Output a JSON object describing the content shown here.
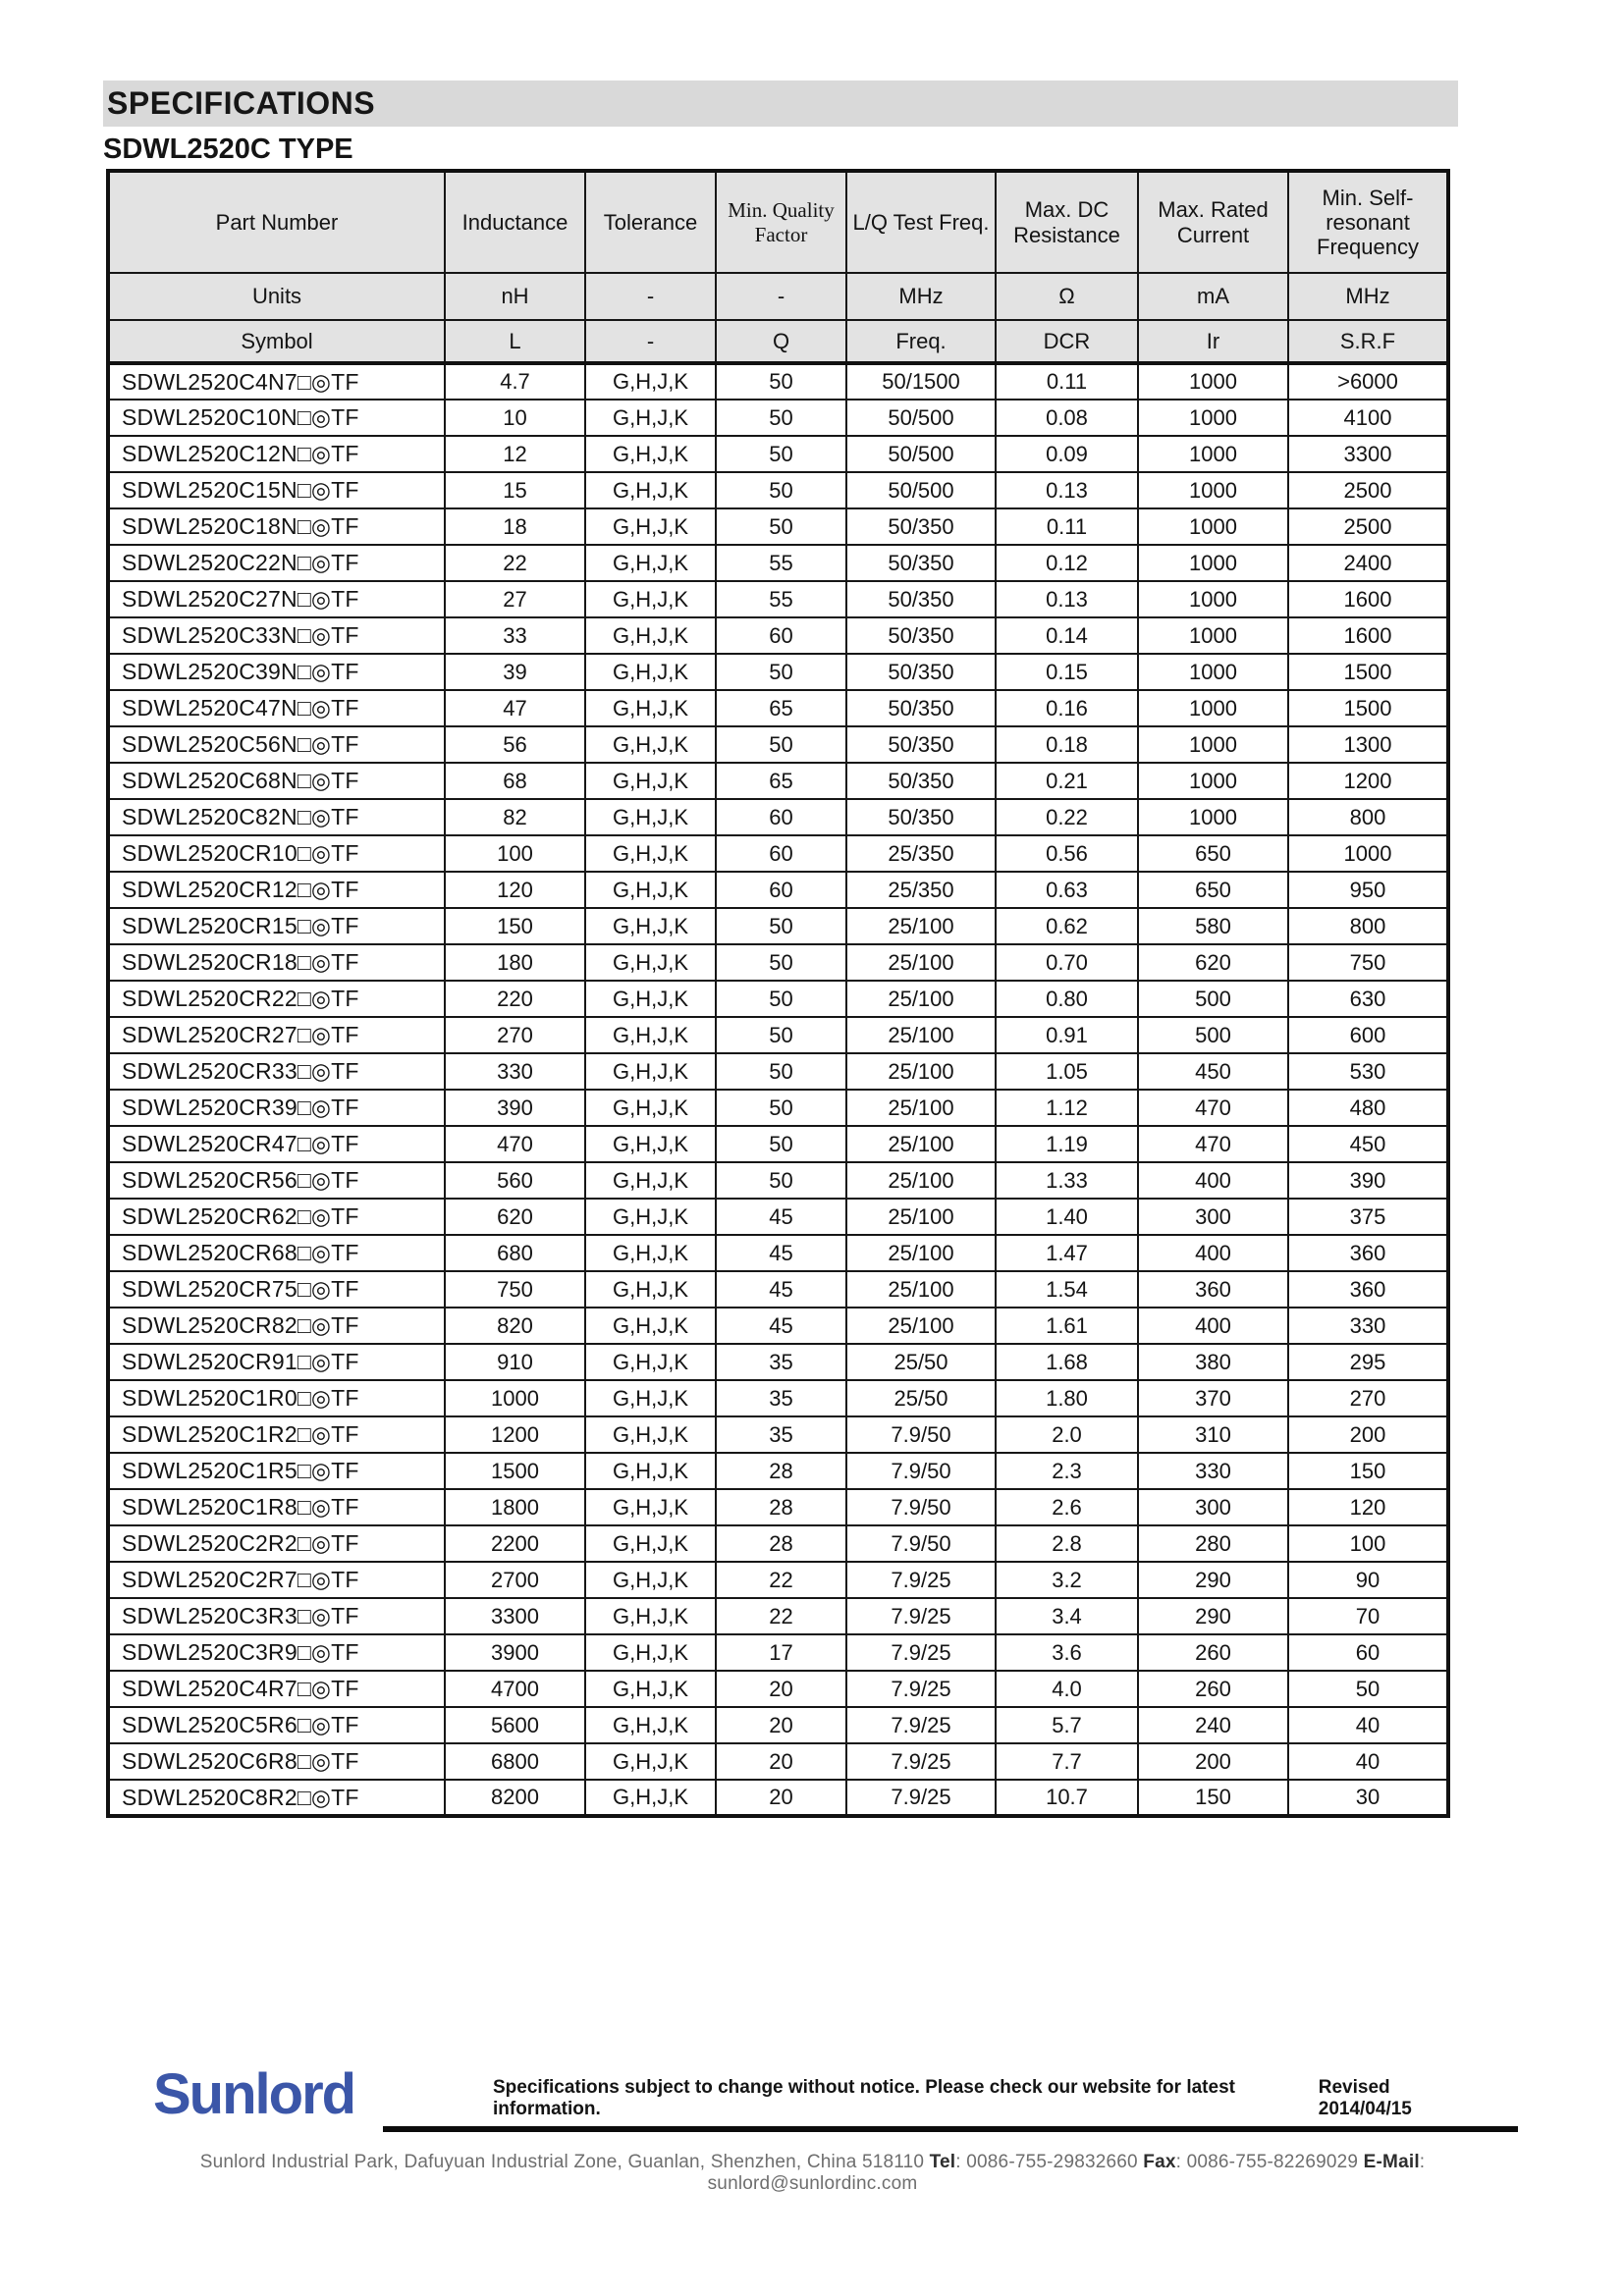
{
  "page": {
    "title": "SPECIFICATIONS",
    "subtitle": "SDWL2520C TYPE"
  },
  "table": {
    "columns": [
      "Part Number",
      "Inductance",
      "Tolerance",
      "Min. Quality Factor",
      "L/Q Test Freq.",
      "Max. DC Resistance",
      "Max. Rated Current",
      "Min. Self-resonant Frequency"
    ],
    "units_row": [
      "Units",
      "nH",
      "-",
      "-",
      "MHz",
      "Ω",
      "mA",
      "MHz"
    ],
    "symbol_row": [
      "Symbol",
      "L",
      "-",
      "Q",
      "Freq.",
      "DCR",
      "Ir",
      "S.R.F"
    ],
    "rows": [
      [
        "SDWL2520C4N7□◎TF",
        "4.7",
        "G,H,J,K",
        "50",
        "50/1500",
        "0.11",
        "1000",
        ">6000"
      ],
      [
        "SDWL2520C10N□◎TF",
        "10",
        "G,H,J,K",
        "50",
        "50/500",
        "0.08",
        "1000",
        "4100"
      ],
      [
        "SDWL2520C12N□◎TF",
        "12",
        "G,H,J,K",
        "50",
        "50/500",
        "0.09",
        "1000",
        "3300"
      ],
      [
        "SDWL2520C15N□◎TF",
        "15",
        "G,H,J,K",
        "50",
        "50/500",
        "0.13",
        "1000",
        "2500"
      ],
      [
        "SDWL2520C18N□◎TF",
        "18",
        "G,H,J,K",
        "50",
        "50/350",
        "0.11",
        "1000",
        "2500"
      ],
      [
        "SDWL2520C22N□◎TF",
        "22",
        "G,H,J,K",
        "55",
        "50/350",
        "0.12",
        "1000",
        "2400"
      ],
      [
        "SDWL2520C27N□◎TF",
        "27",
        "G,H,J,K",
        "55",
        "50/350",
        "0.13",
        "1000",
        "1600"
      ],
      [
        "SDWL2520C33N□◎TF",
        "33",
        "G,H,J,K",
        "60",
        "50/350",
        "0.14",
        "1000",
        "1600"
      ],
      [
        "SDWL2520C39N□◎TF",
        "39",
        "G,H,J,K",
        "50",
        "50/350",
        "0.15",
        "1000",
        "1500"
      ],
      [
        "SDWL2520C47N□◎TF",
        "47",
        "G,H,J,K",
        "65",
        "50/350",
        "0.16",
        "1000",
        "1500"
      ],
      [
        "SDWL2520C56N□◎TF",
        "56",
        "G,H,J,K",
        "50",
        "50/350",
        "0.18",
        "1000",
        "1300"
      ],
      [
        "SDWL2520C68N□◎TF",
        "68",
        "G,H,J,K",
        "65",
        "50/350",
        "0.21",
        "1000",
        "1200"
      ],
      [
        "SDWL2520C82N□◎TF",
        "82",
        "G,H,J,K",
        "60",
        "50/350",
        "0.22",
        "1000",
        "800"
      ],
      [
        "SDWL2520CR10□◎TF",
        "100",
        "G,H,J,K",
        "60",
        "25/350",
        "0.56",
        "650",
        "1000"
      ],
      [
        "SDWL2520CR12□◎TF",
        "120",
        "G,H,J,K",
        "60",
        "25/350",
        "0.63",
        "650",
        "950"
      ],
      [
        "SDWL2520CR15□◎TF",
        "150",
        "G,H,J,K",
        "50",
        "25/100",
        "0.62",
        "580",
        "800"
      ],
      [
        "SDWL2520CR18□◎TF",
        "180",
        "G,H,J,K",
        "50",
        "25/100",
        "0.70",
        "620",
        "750"
      ],
      [
        "SDWL2520CR22□◎TF",
        "220",
        "G,H,J,K",
        "50",
        "25/100",
        "0.80",
        "500",
        "630"
      ],
      [
        "SDWL2520CR27□◎TF",
        "270",
        "G,H,J,K",
        "50",
        "25/100",
        "0.91",
        "500",
        "600"
      ],
      [
        "SDWL2520CR33□◎TF",
        "330",
        "G,H,J,K",
        "50",
        "25/100",
        "1.05",
        "450",
        "530"
      ],
      [
        "SDWL2520CR39□◎TF",
        "390",
        "G,H,J,K",
        "50",
        "25/100",
        "1.12",
        "470",
        "480"
      ],
      [
        "SDWL2520CR47□◎TF",
        "470",
        "G,H,J,K",
        "50",
        "25/100",
        "1.19",
        "470",
        "450"
      ],
      [
        "SDWL2520CR56□◎TF",
        "560",
        "G,H,J,K",
        "50",
        "25/100",
        "1.33",
        "400",
        "390"
      ],
      [
        "SDWL2520CR62□◎TF",
        "620",
        "G,H,J,K",
        "45",
        "25/100",
        "1.40",
        "300",
        "375"
      ],
      [
        "SDWL2520CR68□◎TF",
        "680",
        "G,H,J,K",
        "45",
        "25/100",
        "1.47",
        "400",
        "360"
      ],
      [
        "SDWL2520CR75□◎TF",
        "750",
        "G,H,J,K",
        "45",
        "25/100",
        "1.54",
        "360",
        "360"
      ],
      [
        "SDWL2520CR82□◎TF",
        "820",
        "G,H,J,K",
        "45",
        "25/100",
        "1.61",
        "400",
        "330"
      ],
      [
        "SDWL2520CR91□◎TF",
        "910",
        "G,H,J,K",
        "35",
        "25/50",
        "1.68",
        "380",
        "295"
      ],
      [
        "SDWL2520C1R0□◎TF",
        "1000",
        "G,H,J,K",
        "35",
        "25/50",
        "1.80",
        "370",
        "270"
      ],
      [
        "SDWL2520C1R2□◎TF",
        "1200",
        "G,H,J,K",
        "35",
        "7.9/50",
        "2.0",
        "310",
        "200"
      ],
      [
        "SDWL2520C1R5□◎TF",
        "1500",
        "G,H,J,K",
        "28",
        "7.9/50",
        "2.3",
        "330",
        "150"
      ],
      [
        "SDWL2520C1R8□◎TF",
        "1800",
        "G,H,J,K",
        "28",
        "7.9/50",
        "2.6",
        "300",
        "120"
      ],
      [
        "SDWL2520C2R2□◎TF",
        "2200",
        "G,H,J,K",
        "28",
        "7.9/50",
        "2.8",
        "280",
        "100"
      ],
      [
        "SDWL2520C2R7□◎TF",
        "2700",
        "G,H,J,K",
        "22",
        "7.9/25",
        "3.2",
        "290",
        "90"
      ],
      [
        "SDWL2520C3R3□◎TF",
        "3300",
        "G,H,J,K",
        "22",
        "7.9/25",
        "3.4",
        "290",
        "70"
      ],
      [
        "SDWL2520C3R9□◎TF",
        "3900",
        "G,H,J,K",
        "17",
        "7.9/25",
        "3.6",
        "260",
        "60"
      ],
      [
        "SDWL2520C4R7□◎TF",
        "4700",
        "G,H,J,K",
        "20",
        "7.9/25",
        "4.0",
        "260",
        "50"
      ],
      [
        "SDWL2520C5R6□◎TF",
        "5600",
        "G,H,J,K",
        "20",
        "7.9/25",
        "5.7",
        "240",
        "40"
      ],
      [
        "SDWL2520C6R8□◎TF",
        "6800",
        "G,H,J,K",
        "20",
        "7.9/25",
        "7.7",
        "200",
        "40"
      ],
      [
        "SDWL2520C8R2□◎TF",
        "8200",
        "G,H,J,K",
        "20",
        "7.9/25",
        "10.7",
        "150",
        "30"
      ]
    ]
  },
  "footer": {
    "logo": "Sunlord",
    "disclaimer": "Specifications subject to change without notice. Please check our website for latest information.",
    "revised": "Revised 2014/04/15",
    "address": "Sunlord Industrial Park, Dafuyuan Industrial Zone, Guanlan, Shenzhen, China 518110 ",
    "tel_label": "Tel",
    "tel_value": ": 0086-755-29832660 ",
    "fax_label": "Fax",
    "fax_value": ": 0086-755-82269029 ",
    "email_label": "E-Mail",
    "email_value": ": sunlord@sunlordinc.com"
  },
  "colors": {
    "logo_blue": "#3b56a8",
    "banner_gray": "#d9d9d9",
    "header_cell_gray": "#e3e3e3"
  }
}
